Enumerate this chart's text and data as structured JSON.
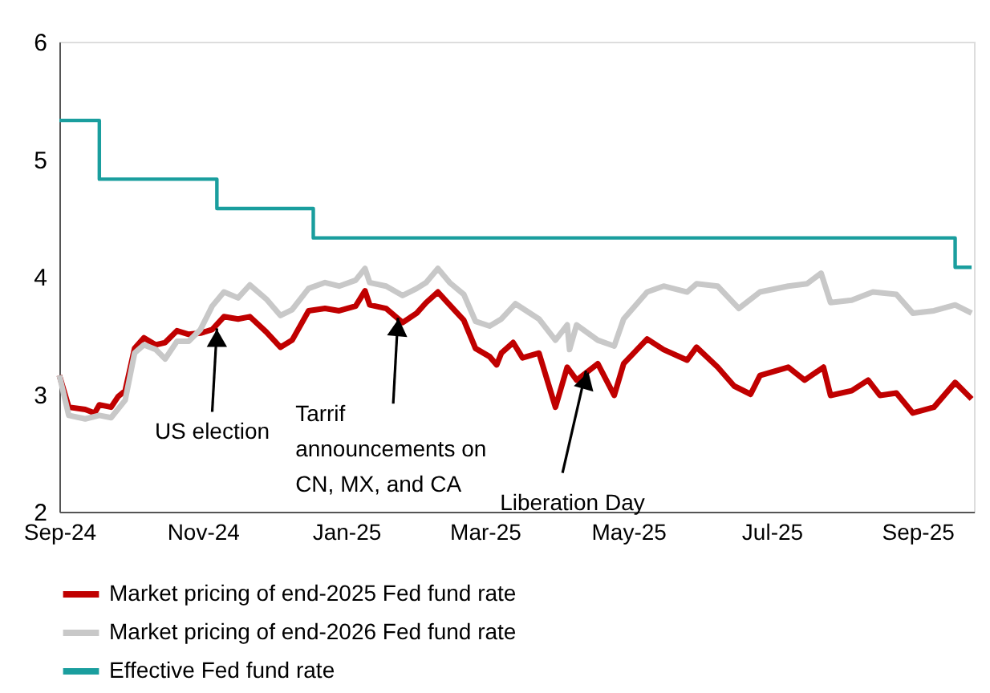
{
  "chart_data": {
    "type": "line",
    "xlim": [
      "2024-09-01",
      "2025-09-25"
    ],
    "xticks": [
      {
        "value": "2024-09-01",
        "label": "Sep-24"
      },
      {
        "value": "2024-11-01",
        "label": "Nov-24"
      },
      {
        "value": "2025-01-01",
        "label": "Jan-25"
      },
      {
        "value": "2025-03-01",
        "label": "Mar-25"
      },
      {
        "value": "2025-05-01",
        "label": "May-25"
      },
      {
        "value": "2025-07-01",
        "label": "Jul-25"
      },
      {
        "value": "2025-09-01",
        "label": "Sep-25"
      }
    ],
    "ylim": [
      2,
      6
    ],
    "yticks": [
      2,
      3,
      4,
      5,
      6
    ],
    "grid": false,
    "legend": "bottom",
    "series": [
      {
        "name": "Market pricing of end-2025 Fed fund rate",
        "color": "#c00000",
        "x": [
          "2024-09-01",
          "2024-09-05",
          "2024-09-12",
          "2024-09-16",
          "2024-09-18",
          "2024-09-23",
          "2024-09-26",
          "2024-09-29",
          "2024-10-03",
          "2024-10-07",
          "2024-10-12",
          "2024-10-16",
          "2024-10-21",
          "2024-10-26",
          "2024-10-31",
          "2024-11-05",
          "2024-11-10",
          "2024-11-16",
          "2024-11-21",
          "2024-11-28",
          "2024-12-04",
          "2024-12-09",
          "2024-12-16",
          "2024-12-23",
          "2024-12-29",
          "2025-01-05",
          "2025-01-09",
          "2025-01-11",
          "2025-01-18",
          "2025-01-25",
          "2025-01-31",
          "2025-02-04",
          "2025-02-09",
          "2025-02-14",
          "2025-02-20",
          "2025-02-25",
          "2025-03-03",
          "2025-03-06",
          "2025-03-08",
          "2025-03-13",
          "2025-03-17",
          "2025-03-24",
          "2025-03-31",
          "2025-04-05",
          "2025-04-09",
          "2025-04-18",
          "2025-04-25",
          "2025-04-29",
          "2025-05-09",
          "2025-05-16",
          "2025-05-26",
          "2025-05-30",
          "2025-06-08",
          "2025-06-15",
          "2025-06-22",
          "2025-06-26",
          "2025-07-08",
          "2025-07-15",
          "2025-07-23",
          "2025-07-26",
          "2025-08-04",
          "2025-08-11",
          "2025-08-16",
          "2025-08-23",
          "2025-08-30",
          "2025-09-08",
          "2025-09-17",
          "2025-09-24"
        ],
        "values": [
          3.16,
          2.89,
          2.87,
          2.84,
          2.91,
          2.89,
          2.98,
          3.03,
          3.39,
          3.48,
          3.42,
          3.44,
          3.54,
          3.51,
          3.52,
          3.55,
          3.66,
          3.64,
          3.66,
          3.53,
          3.4,
          3.46,
          3.71,
          3.73,
          3.71,
          3.75,
          3.88,
          3.76,
          3.73,
          3.61,
          3.69,
          3.78,
          3.87,
          3.76,
          3.63,
          3.39,
          3.32,
          3.25,
          3.35,
          3.44,
          3.31,
          3.35,
          2.89,
          3.23,
          3.12,
          3.26,
          2.99,
          3.26,
          3.47,
          3.38,
          3.29,
          3.4,
          3.23,
          3.07,
          3.0,
          3.16,
          3.23,
          3.12,
          3.23,
          2.99,
          3.03,
          3.12,
          2.99,
          3.01,
          2.84,
          2.89,
          3.1,
          2.96
        ]
      },
      {
        "name": "Market pricing of end-2026 Fed fund rate",
        "color": "#c8c8c8",
        "x": [
          "2024-09-01",
          "2024-09-05",
          "2024-09-12",
          "2024-09-18",
          "2024-09-23",
          "2024-09-29",
          "2024-10-03",
          "2024-10-07",
          "2024-10-12",
          "2024-10-16",
          "2024-10-21",
          "2024-10-26",
          "2024-10-31",
          "2024-11-05",
          "2024-11-10",
          "2024-11-16",
          "2024-11-21",
          "2024-11-28",
          "2024-12-04",
          "2024-12-09",
          "2024-12-16",
          "2024-12-23",
          "2024-12-29",
          "2025-01-05",
          "2025-01-09",
          "2025-01-11",
          "2025-01-18",
          "2025-01-25",
          "2025-01-31",
          "2025-02-04",
          "2025-02-09",
          "2025-02-14",
          "2025-02-20",
          "2025-02-25",
          "2025-03-03",
          "2025-03-08",
          "2025-03-14",
          "2025-03-24",
          "2025-03-31",
          "2025-04-05",
          "2025-04-06",
          "2025-04-09",
          "2025-04-18",
          "2025-04-25",
          "2025-04-29",
          "2025-05-09",
          "2025-05-16",
          "2025-05-26",
          "2025-05-30",
          "2025-06-08",
          "2025-06-17",
          "2025-06-26",
          "2025-07-08",
          "2025-07-16",
          "2025-07-22",
          "2025-07-26",
          "2025-08-04",
          "2025-08-13",
          "2025-08-23",
          "2025-08-30",
          "2025-09-08",
          "2025-09-17",
          "2025-09-24"
        ],
        "values": [
          3.16,
          2.82,
          2.79,
          2.82,
          2.8,
          2.95,
          3.35,
          3.42,
          3.38,
          3.3,
          3.45,
          3.45,
          3.55,
          3.75,
          3.87,
          3.82,
          3.93,
          3.81,
          3.67,
          3.72,
          3.9,
          3.95,
          3.92,
          3.97,
          4.07,
          3.95,
          3.92,
          3.84,
          3.9,
          3.95,
          4.07,
          3.95,
          3.85,
          3.62,
          3.58,
          3.64,
          3.77,
          3.64,
          3.46,
          3.59,
          3.38,
          3.59,
          3.46,
          3.41,
          3.64,
          3.87,
          3.92,
          3.87,
          3.94,
          3.92,
          3.73,
          3.87,
          3.92,
          3.94,
          4.03,
          3.78,
          3.8,
          3.87,
          3.85,
          3.69,
          3.71,
          3.76,
          3.69
        ]
      },
      {
        "name": "Effective Fed fund rate",
        "color": "#1a9e9e",
        "type": "step",
        "x": [
          "2024-09-01",
          "2024-09-18",
          "2024-11-07",
          "2024-12-18",
          "2025-09-17",
          "2025-09-24"
        ],
        "values": [
          5.33,
          4.83,
          4.58,
          4.33,
          4.08,
          4.08
        ]
      }
    ],
    "annotations": [
      {
        "text": "US election",
        "x": "2024-11-07",
        "y": 3.56
      },
      {
        "text": "Tarrif\nannouncements on\nCN, MX, and CA",
        "x": "2025-01-23",
        "y": 3.65
      },
      {
        "text": "Liberation Day",
        "x": "2025-04-13",
        "y": 3.2
      }
    ]
  }
}
